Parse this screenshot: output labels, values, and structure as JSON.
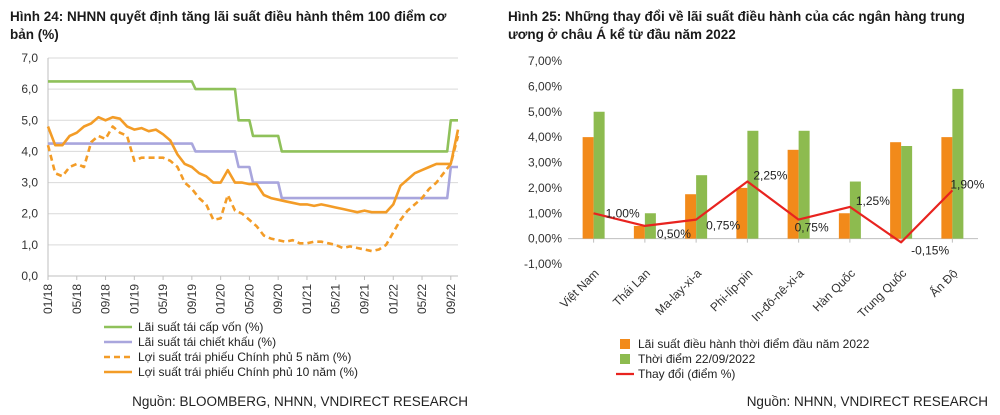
{
  "colors": {
    "green": "#8fc15a",
    "lavender": "#a9a6dd",
    "orange": "#f39c27",
    "red": "#e8231f",
    "bar_orange": "#f28a1a",
    "bar_green": "#8dbb4f",
    "grid": "#d9d9d9"
  },
  "left": {
    "title": "Hình 24: NHNN quyết định tăng lãi suất điều hành thêm 100 điểm cơ bản (%)",
    "source": "Nguồn: BLOOMBERG, NHNN, VNDIRECT RESEARCH"
  },
  "right": {
    "title": "Hình 25: Những thay đổi về lãi suất điều hành của các ngân hàng trung ương ở châu Á kể từ đầu năm 2022",
    "source": "Nguồn: NHNN, VNDIRECT RESEARCH"
  },
  "chart_data": [
    {
      "type": "line",
      "ylim": [
        0,
        7
      ],
      "yticks": [
        "0,0",
        "1,0",
        "2,0",
        "3,0",
        "4,0",
        "5,0",
        "6,0",
        "7,0"
      ],
      "yticks_values": [
        0,
        1,
        2,
        3,
        4,
        5,
        6,
        7
      ],
      "xticks": [
        "01/18",
        "05/18",
        "09/18",
        "01/19",
        "05/19",
        "09/19",
        "01/20",
        "05/20",
        "09/20",
        "01/21",
        "05/21",
        "09/21",
        "01/22",
        "05/22",
        "09/22"
      ],
      "x_index_range": [
        0,
        57
      ],
      "xticks_index": [
        0,
        4,
        8,
        12,
        16,
        20,
        24,
        28,
        32,
        36,
        40,
        44,
        48,
        52,
        56
      ],
      "series": [
        {
          "name": "Lãi suất tái cấp vốn (%)",
          "style": "solid",
          "color": "#8fc15a",
          "x": [
            0,
            20,
            20.5,
            26,
            26.5,
            28,
            28.5,
            32,
            32.5,
            55.5,
            56,
            57
          ],
          "y": [
            6.25,
            6.25,
            6.0,
            6.0,
            5.0,
            5.0,
            4.5,
            4.5,
            4.0,
            4.0,
            5.0,
            5.0
          ]
        },
        {
          "name": "Lãi suất tái chiết khấu (%)",
          "style": "solid",
          "color": "#a9a6dd",
          "x": [
            0,
            20,
            20.5,
            26,
            26.5,
            28,
            28.5,
            32,
            32.5,
            55.5,
            56,
            57
          ],
          "y": [
            4.25,
            4.25,
            4.0,
            4.0,
            3.5,
            3.5,
            3.0,
            3.0,
            2.5,
            2.5,
            3.5,
            3.5
          ]
        },
        {
          "name": "Lợi suất trái phiếu Chính phủ 5 năm (%)",
          "style": "dashed",
          "color": "#f39c27",
          "x": [
            0,
            1,
            2,
            3,
            4,
            5,
            6,
            7,
            8,
            9,
            10,
            11,
            12,
            13,
            14,
            15,
            16,
            17,
            18,
            19,
            20,
            21,
            22,
            23,
            24,
            25,
            26,
            27,
            28,
            29,
            30,
            31,
            32,
            33,
            34,
            35,
            36,
            37,
            38,
            39,
            40,
            41,
            42,
            43,
            44,
            45,
            46,
            47,
            48,
            49,
            50,
            51,
            52,
            53,
            54,
            55,
            56,
            57
          ],
          "y": [
            4.2,
            3.3,
            3.2,
            3.5,
            3.6,
            3.5,
            4.3,
            4.5,
            4.4,
            4.8,
            4.6,
            4.5,
            3.7,
            3.8,
            3.8,
            3.8,
            3.8,
            3.7,
            3.5,
            3.0,
            2.8,
            2.5,
            2.3,
            1.8,
            1.85,
            2.6,
            2.1,
            2.0,
            1.8,
            1.6,
            1.3,
            1.2,
            1.15,
            1.1,
            1.15,
            1.05,
            1.05,
            1.1,
            1.1,
            1.05,
            1.0,
            0.9,
            0.95,
            0.9,
            0.85,
            0.8,
            0.85,
            1.0,
            1.4,
            1.8,
            2.1,
            2.3,
            2.5,
            2.8,
            3.0,
            3.3,
            3.6,
            4.5
          ]
        },
        {
          "name": "Lợi suất trái phiếu Chính phủ 10 năm (%)",
          "style": "solid",
          "color": "#f39c27",
          "x": [
            0,
            1,
            2,
            3,
            4,
            5,
            6,
            7,
            8,
            9,
            10,
            11,
            12,
            13,
            14,
            15,
            16,
            17,
            18,
            19,
            20,
            21,
            22,
            23,
            24,
            25,
            26,
            27,
            28,
            29,
            30,
            31,
            32,
            33,
            34,
            35,
            36,
            37,
            38,
            39,
            40,
            41,
            42,
            43,
            44,
            45,
            46,
            47,
            48,
            49,
            50,
            51,
            52,
            53,
            54,
            55,
            56,
            57
          ],
          "y": [
            4.8,
            4.2,
            4.2,
            4.5,
            4.6,
            4.8,
            4.9,
            5.1,
            5.0,
            5.1,
            5.05,
            4.8,
            4.7,
            4.75,
            4.65,
            4.7,
            4.55,
            4.35,
            3.9,
            3.6,
            3.5,
            3.3,
            3.2,
            3.0,
            3.0,
            3.4,
            3.0,
            3.0,
            2.95,
            2.95,
            2.6,
            2.5,
            2.45,
            2.4,
            2.35,
            2.3,
            2.3,
            2.25,
            2.3,
            2.25,
            2.2,
            2.15,
            2.1,
            2.05,
            2.1,
            2.05,
            2.05,
            2.05,
            2.3,
            2.9,
            3.1,
            3.3,
            3.4,
            3.5,
            3.6,
            3.6,
            3.6,
            4.7
          ]
        }
      ]
    },
    {
      "type": "bar",
      "categories": [
        "Việt Nam",
        "Thái Lan",
        "Ma-lay-xi-a",
        "Phi-líp-pin",
        "In-đô-nê-xi-a",
        "Hàn Quốc",
        "Trung Quốc",
        "Ấn Độ"
      ],
      "ylim": [
        -1,
        7
      ],
      "yticks": [
        "-1,00%",
        "0,00%",
        "1,00%",
        "2,00%",
        "3,00%",
        "4,00%",
        "5,00%",
        "6,00%",
        "7,00%"
      ],
      "yticks_values": [
        -1,
        0,
        1,
        2,
        3,
        4,
        5,
        6,
        7
      ],
      "series": [
        {
          "name": "Lãi suất điều hành thời điểm đầu năm 2022",
          "kind": "bar",
          "color": "#f28a1a",
          "values": [
            4.0,
            0.5,
            1.75,
            2.0,
            3.5,
            1.0,
            3.8,
            4.0
          ]
        },
        {
          "name": "Thời điểm 22/09/2022",
          "kind": "bar",
          "color": "#8dbb4f",
          "values": [
            5.0,
            1.0,
            2.5,
            4.25,
            4.25,
            2.25,
            3.65,
            5.9
          ]
        },
        {
          "name": "Thay đổi (điểm %)",
          "kind": "line",
          "color": "#e8231f",
          "values": [
            1.0,
            0.5,
            0.75,
            2.25,
            0.75,
            1.25,
            -0.15,
            1.9
          ],
          "labels": [
            "1,00%",
            "0,50%",
            "0,75%",
            "2,25%",
            "0,75%",
            "1,25%",
            "-0,15%",
            "1,90%"
          ]
        }
      ]
    }
  ]
}
